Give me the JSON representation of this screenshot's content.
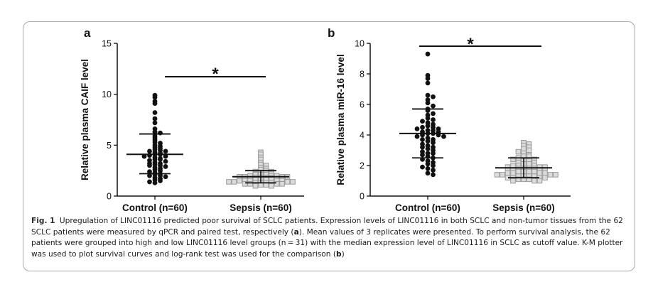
{
  "figure": {
    "caption_label": "Fig. 1",
    "caption_main": "Upregulation of LINC01116 predicted poor survival of SCLC patients. Expression levels of LINC01116 in both SCLC and non-tumor tissues from the 62 SCLC patients were measured by qPCR and paired test, respectively (",
    "caption_ref_a": "a",
    "caption_mid": "). Mean values of 3 replicates were presented. To perform survival analysis, the 62 patients were grouped into high and low LINC01116 level groups (n = 31) with the median expression level of LINC01116 in SCLC as cutoff value. K-M plotter was used to plot survival curves and log-rank test was used for the comparison (",
    "caption_ref_b": "b",
    "caption_end": ")"
  },
  "chart_data": [
    {
      "type": "scatter",
      "panel_label": "a",
      "ylabel": "Relative plasma CAIF level",
      "ylim": [
        0,
        15
      ],
      "yticks": [
        0,
        5,
        10,
        15
      ],
      "categories": [
        "Control (n=60)",
        "Sepsis (n=60)"
      ],
      "significance": "*",
      "series": [
        {
          "category": "Control (n=60)",
          "marker": "filled-circle",
          "mean": 4.1,
          "sd_low": 2.2,
          "sd_high": 6.1,
          "values": [
            9.9,
            9.7,
            9.3,
            9.1,
            8.2,
            7.6,
            7.2,
            6.6,
            6.3,
            6.2,
            5.9,
            5.7,
            5.5,
            5.3,
            5.2,
            5.0,
            4.9,
            4.8,
            4.7,
            4.6,
            4.5,
            4.4,
            4.4,
            4.3,
            4.2,
            4.1,
            4.1,
            4.0,
            3.9,
            3.9,
            3.8,
            3.7,
            3.6,
            3.6,
            3.5,
            3.4,
            3.3,
            3.2,
            3.2,
            3.1,
            3.0,
            3.0,
            2.9,
            2.8,
            2.7,
            2.6,
            2.5,
            2.4,
            2.3,
            2.2,
            2.1,
            2.0,
            2.0,
            1.9,
            1.8,
            1.7,
            1.6,
            1.5,
            1.4,
            1.3
          ]
        },
        {
          "category": "Sepsis (n=60)",
          "marker": "open-square",
          "mean": 1.9,
          "sd_low": 1.3,
          "sd_high": 2.5,
          "values": [
            4.3,
            4.1,
            3.8,
            3.6,
            3.3,
            3.1,
            3.0,
            2.8,
            2.7,
            2.6,
            2.5,
            2.4,
            2.4,
            2.3,
            2.3,
            2.2,
            2.2,
            2.1,
            2.1,
            2.1,
            2.0,
            2.0,
            2.0,
            1.9,
            1.9,
            1.9,
            1.9,
            1.8,
            1.8,
            1.8,
            1.8,
            1.7,
            1.7,
            1.7,
            1.7,
            1.6,
            1.6,
            1.6,
            1.6,
            1.5,
            1.5,
            1.5,
            1.5,
            1.5,
            1.4,
            1.4,
            1.4,
            1.4,
            1.3,
            1.3,
            1.3,
            1.3,
            1.2,
            1.2,
            1.2,
            1.2,
            1.1,
            1.1,
            1.0,
            1.0
          ]
        }
      ]
    },
    {
      "type": "scatter",
      "panel_label": "b",
      "ylabel": "Relative plasma miR-16 level",
      "ylim": [
        0,
        10
      ],
      "yticks": [
        0,
        2,
        4,
        6,
        8,
        10
      ],
      "categories": [
        "Control (n=60)",
        "Sepsis (n=60)"
      ],
      "significance": "*",
      "series": [
        {
          "category": "Control (n=60)",
          "marker": "filled-circle",
          "mean": 4.1,
          "sd_low": 2.5,
          "sd_high": 5.7,
          "values": [
            9.3,
            7.9,
            7.7,
            7.4,
            6.6,
            6.5,
            6.3,
            6.1,
            5.9,
            5.7,
            5.6,
            5.4,
            5.3,
            5.1,
            5.0,
            4.9,
            4.8,
            4.7,
            4.6,
            4.5,
            4.5,
            4.4,
            4.4,
            4.3,
            4.3,
            4.2,
            4.2,
            4.1,
            4.1,
            4.0,
            4.0,
            3.9,
            3.9,
            3.8,
            3.7,
            3.7,
            3.6,
            3.5,
            3.4,
            3.3,
            3.2,
            3.2,
            3.1,
            3.0,
            2.9,
            2.8,
            2.8,
            2.7,
            2.6,
            2.5,
            2.4,
            2.3,
            2.2,
            2.1,
            2.0,
            1.9,
            1.8,
            1.7,
            1.5,
            1.4
          ]
        },
        {
          "category": "Sepsis (n=60)",
          "marker": "open-square",
          "mean": 1.85,
          "sd_low": 1.2,
          "sd_high": 2.5,
          "values": [
            3.5,
            3.4,
            3.3,
            3.2,
            3.1,
            3.0,
            2.9,
            2.8,
            2.7,
            2.6,
            2.6,
            2.5,
            2.4,
            2.4,
            2.3,
            2.3,
            2.2,
            2.2,
            2.1,
            2.1,
            2.0,
            2.0,
            2.0,
            1.9,
            1.9,
            1.9,
            1.8,
            1.8,
            1.8,
            1.8,
            1.7,
            1.7,
            1.7,
            1.7,
            1.6,
            1.6,
            1.6,
            1.6,
            1.5,
            1.5,
            1.5,
            1.5,
            1.4,
            1.4,
            1.4,
            1.4,
            1.3,
            1.3,
            1.3,
            1.3,
            1.2,
            1.2,
            1.2,
            1.2,
            1.1,
            1.1,
            1.1,
            1.0,
            1.0,
            1.0
          ]
        }
      ]
    }
  ]
}
